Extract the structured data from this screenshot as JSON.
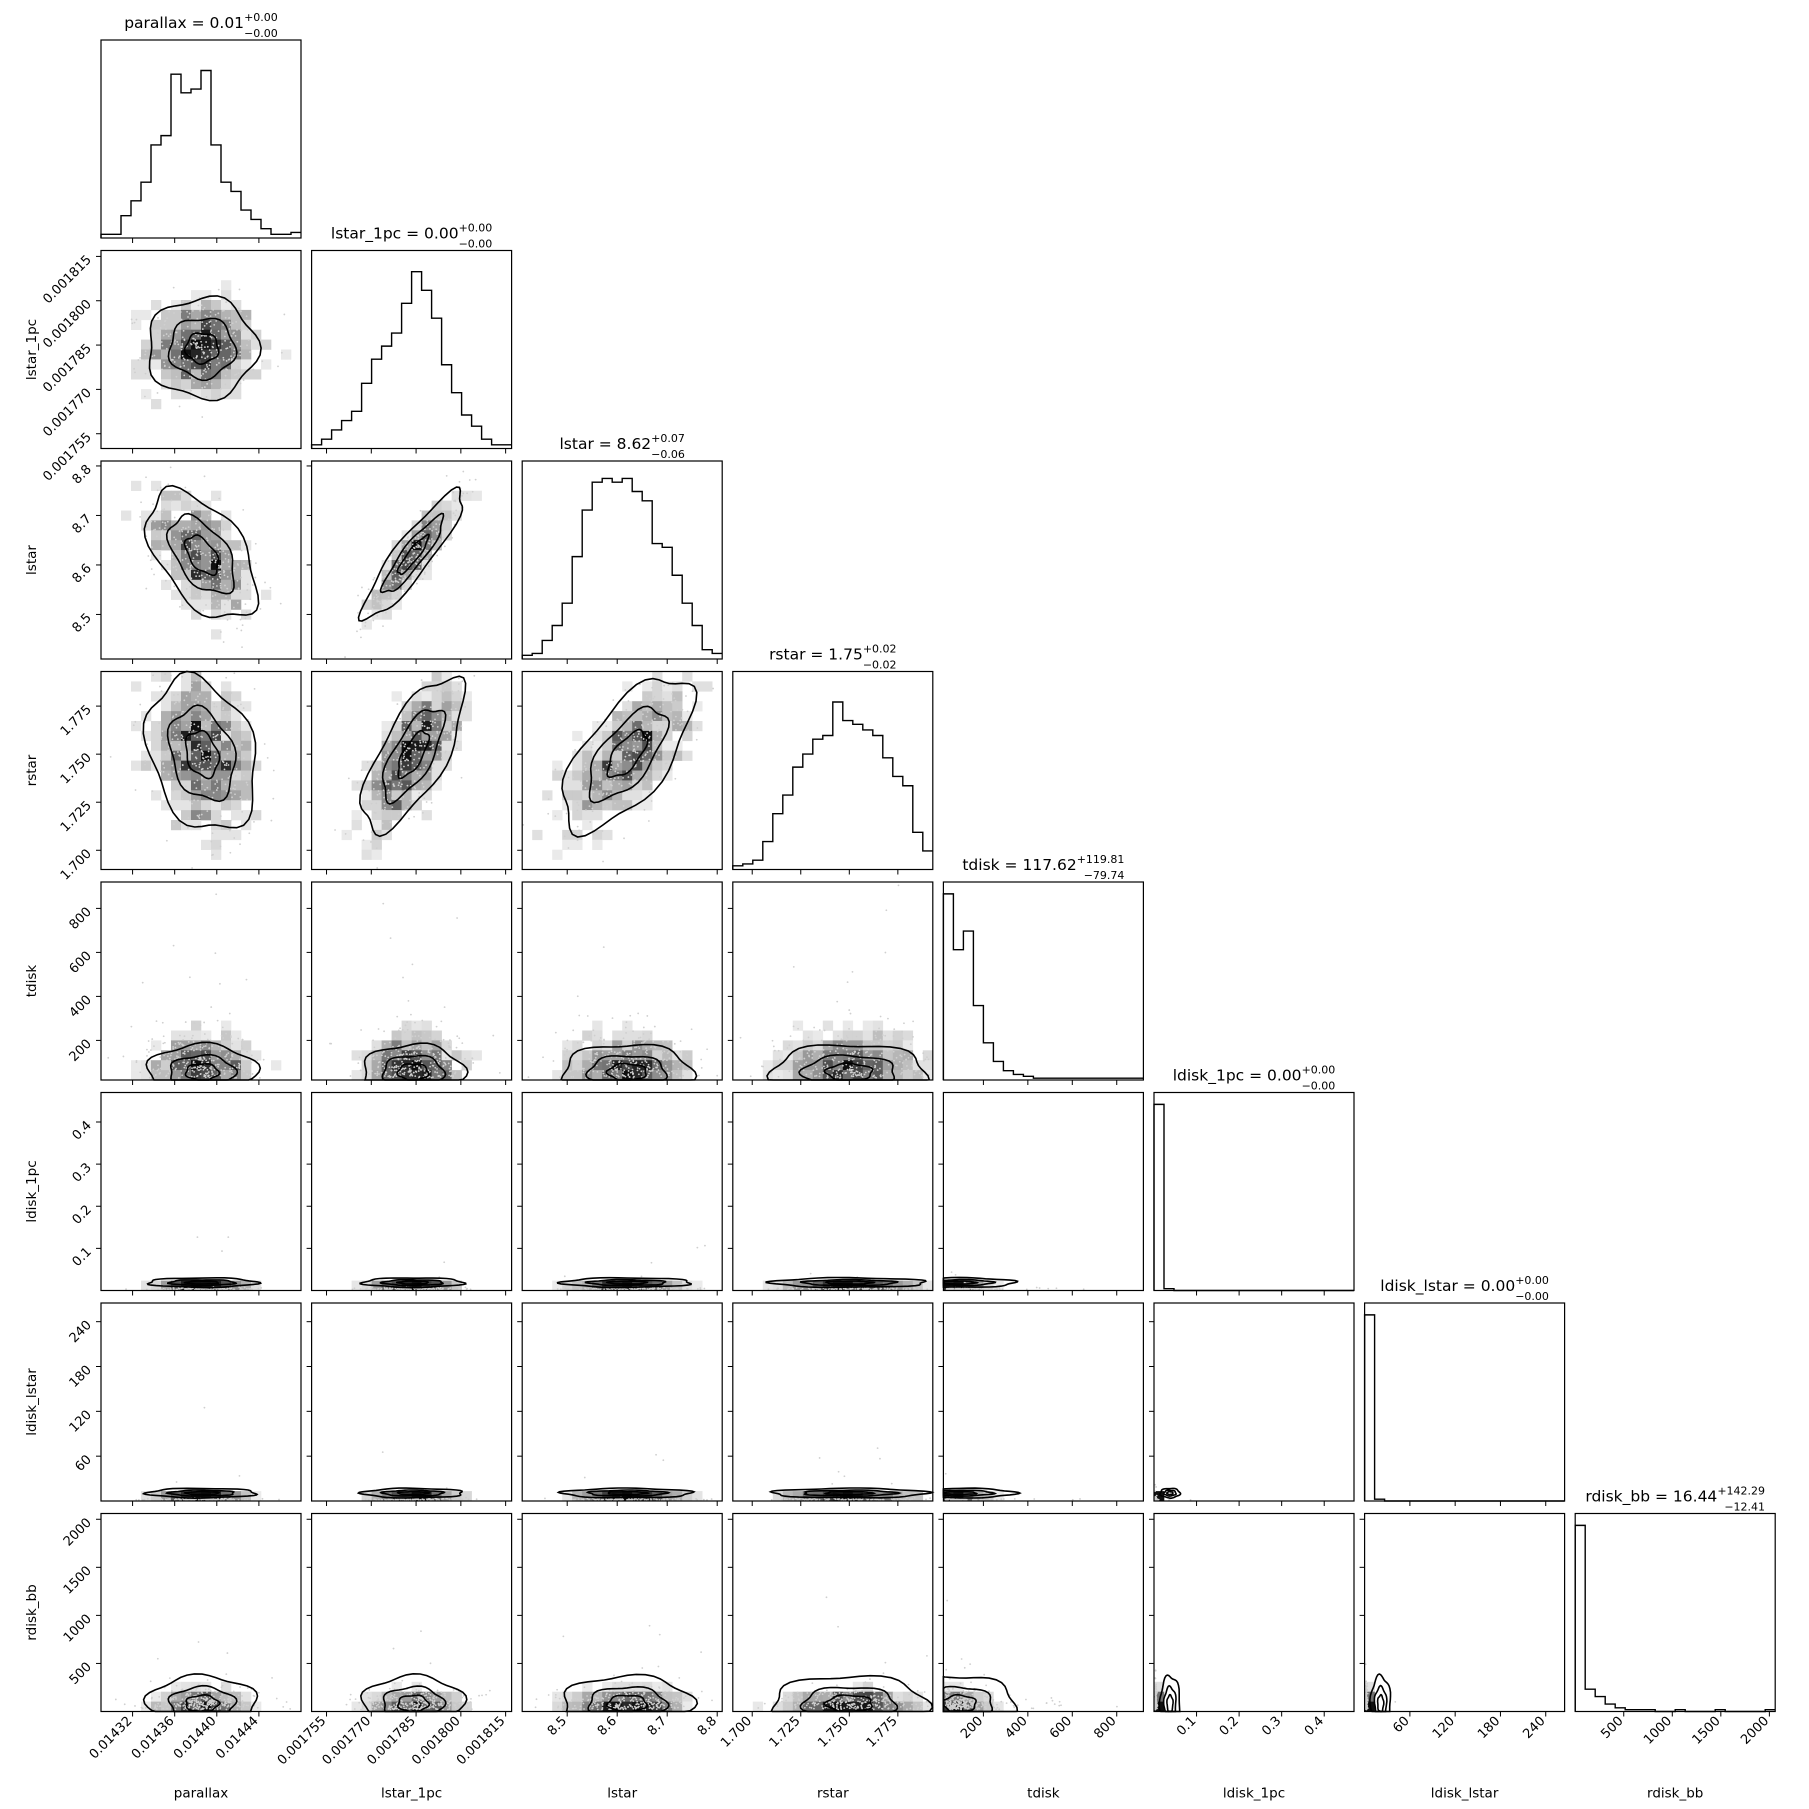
{
  "chart_data": {
    "type": "corner",
    "title": "",
    "parameters": [
      {
        "name": "parallax",
        "label": "parallax",
        "range": [
          0.01429,
          0.01448
        ],
        "ticks": [
          0.01432,
          0.01436,
          0.0144,
          0.01444
        ],
        "tick_labels": [
          "0.01432",
          "0.01436",
          "0.01440",
          "0.01444"
        ],
        "median": 0.014386,
        "sigma": 2.6e-05,
        "dist": "normal",
        "title_main": "parallax = 0.01",
        "title_sup": "+0.00",
        "title_sub": "−0.00"
      },
      {
        "name": "lstar_1pc",
        "label": "lstar_1pc",
        "range": [
          0.00175,
          0.001817
        ],
        "ticks": [
          0.001755,
          0.00177,
          0.001785,
          0.0018,
          0.001815
        ],
        "tick_labels": [
          "0.001755",
          "0.001770",
          "0.001785",
          "0.001800",
          "0.001815"
        ],
        "median": 0.001784,
        "sigma": 8.5e-06,
        "dist": "normal",
        "title_main": "lstar_1pc = 0.00",
        "title_sup": "+0.00",
        "title_sub": "−0.00"
      },
      {
        "name": "lstar",
        "label": "lstar",
        "range": [
          8.41,
          8.81
        ],
        "ticks": [
          8.5,
          8.6,
          8.7,
          8.8
        ],
        "tick_labels": [
          "8.5",
          "8.6",
          "8.7",
          "8.8"
        ],
        "median": 8.62,
        "sigma": 0.065,
        "dist": "normal",
        "title_main": "lstar = 8.62",
        "title_sup": "+0.07",
        "title_sub": "−0.06"
      },
      {
        "name": "rstar",
        "label": "rstar",
        "range": [
          1.69,
          1.793
        ],
        "ticks": [
          1.7,
          1.725,
          1.75,
          1.775
        ],
        "tick_labels": [
          "1.700",
          "1.725",
          "1.750",
          "1.775"
        ],
        "median": 1.75,
        "sigma": 0.02,
        "dist": "normal",
        "title_main": "rstar = 1.75",
        "title_sup": "+0.02",
        "title_sub": "−0.02"
      },
      {
        "name": "tdisk",
        "label": "tdisk",
        "range": [
          20,
          920
        ],
        "ticks": [
          200,
          400,
          600,
          800
        ],
        "tick_labels": [
          "200",
          "400",
          "600",
          "800"
        ],
        "median": 117.62,
        "sigma": 100,
        "dist": "skew",
        "title_main": "tdisk = 117.62",
        "title_sup": "+119.81",
        "title_sub": "−79.74"
      },
      {
        "name": "ldisk_1pc",
        "label": "ldisk_1pc",
        "range": [
          0,
          0.47
        ],
        "ticks": [
          0.1,
          0.2,
          0.3,
          0.4
        ],
        "tick_labels": [
          "0.1",
          "0.2",
          "0.3",
          "0.4"
        ],
        "median": 0.002,
        "sigma": 0.003,
        "dist": "spike",
        "title_main": "ldisk_1pc = 0.00",
        "title_sup": "+0.00",
        "title_sub": "−0.00"
      },
      {
        "name": "ldisk_lstar",
        "label": "ldisk_lstar",
        "range": [
          0,
          265
        ],
        "ticks": [
          60,
          120,
          180,
          240
        ],
        "tick_labels": [
          "60",
          "120",
          "180",
          "240"
        ],
        "median": 0.001,
        "sigma": 1,
        "dist": "spike",
        "title_main": "ldisk_lstar = 0.00",
        "title_sup": "+0.00",
        "title_sub": "−0.00"
      },
      {
        "name": "rdisk_bb",
        "label": "rdisk_bb",
        "range": [
          0,
          2060
        ],
        "ticks": [
          500,
          1000,
          1500,
          2000
        ],
        "tick_labels": [
          "500",
          "1000",
          "1500",
          "2000"
        ],
        "median": 16.44,
        "sigma": 100,
        "dist": "skew",
        "title_main": "rdisk_bb = 16.44",
        "title_sup": "+142.29",
        "title_sub": "−12.41"
      }
    ],
    "histograms": [
      [
        0.02,
        0.02,
        0.12,
        0.2,
        0.3,
        0.5,
        0.55,
        0.88,
        0.78,
        0.8,
        0.9,
        0.5,
        0.3,
        0.25,
        0.15,
        0.1,
        0.05,
        0.02,
        0.02,
        0.03
      ],
      [
        0.02,
        0.05,
        0.1,
        0.15,
        0.2,
        0.35,
        0.48,
        0.55,
        0.62,
        0.78,
        0.95,
        0.85,
        0.7,
        0.45,
        0.3,
        0.18,
        0.12,
        0.05,
        0.02,
        0.02
      ],
      [
        0.02,
        0.03,
        0.1,
        0.18,
        0.3,
        0.55,
        0.8,
        0.95,
        0.97,
        0.95,
        0.97,
        0.9,
        0.85,
        0.62,
        0.6,
        0.45,
        0.3,
        0.18,
        0.05,
        0.03
      ],
      [
        0.02,
        0.03,
        0.05,
        0.15,
        0.3,
        0.4,
        0.55,
        0.62,
        0.7,
        0.72,
        0.9,
        0.8,
        0.78,
        0.75,
        0.72,
        0.6,
        0.5,
        0.45,
        0.2,
        0.1
      ],
      [
        1.0,
        0.7,
        0.8,
        0.4,
        0.2,
        0.1,
        0.05,
        0.03,
        0.02,
        0.01,
        0.01,
        0.01,
        0.01,
        0.01,
        0.01,
        0.01,
        0.01,
        0.01,
        0.01,
        0.01
      ],
      [
        1.0,
        0.01,
        0.0,
        0.0,
        0.0,
        0.0,
        0.0,
        0.0,
        0.0,
        0.0,
        0.0,
        0.0,
        0.0,
        0.0,
        0.0,
        0.0,
        0.0,
        0.0,
        0.0,
        0.0
      ],
      [
        1.0,
        0.01,
        0.0,
        0.0,
        0.0,
        0.0,
        0.0,
        0.0,
        0.0,
        0.0,
        0.0,
        0.0,
        0.0,
        0.0,
        0.0,
        0.0,
        0.0,
        0.0,
        0.0,
        0.0
      ],
      [
        1.0,
        0.12,
        0.08,
        0.04,
        0.02,
        0.01,
        0.01,
        0.01,
        0.0,
        0.0,
        0.01,
        0.0,
        0.0,
        0.0,
        0.01,
        0.0,
        0.0,
        0.0,
        0.0,
        0.01
      ]
    ],
    "correlations": {
      "1,0": 0.0,
      "2,0": -0.5,
      "2,1": 0.9,
      "3,0": -0.25,
      "3,1": 0.7,
      "3,2": 0.65
    },
    "grid": false,
    "legend": "none"
  }
}
